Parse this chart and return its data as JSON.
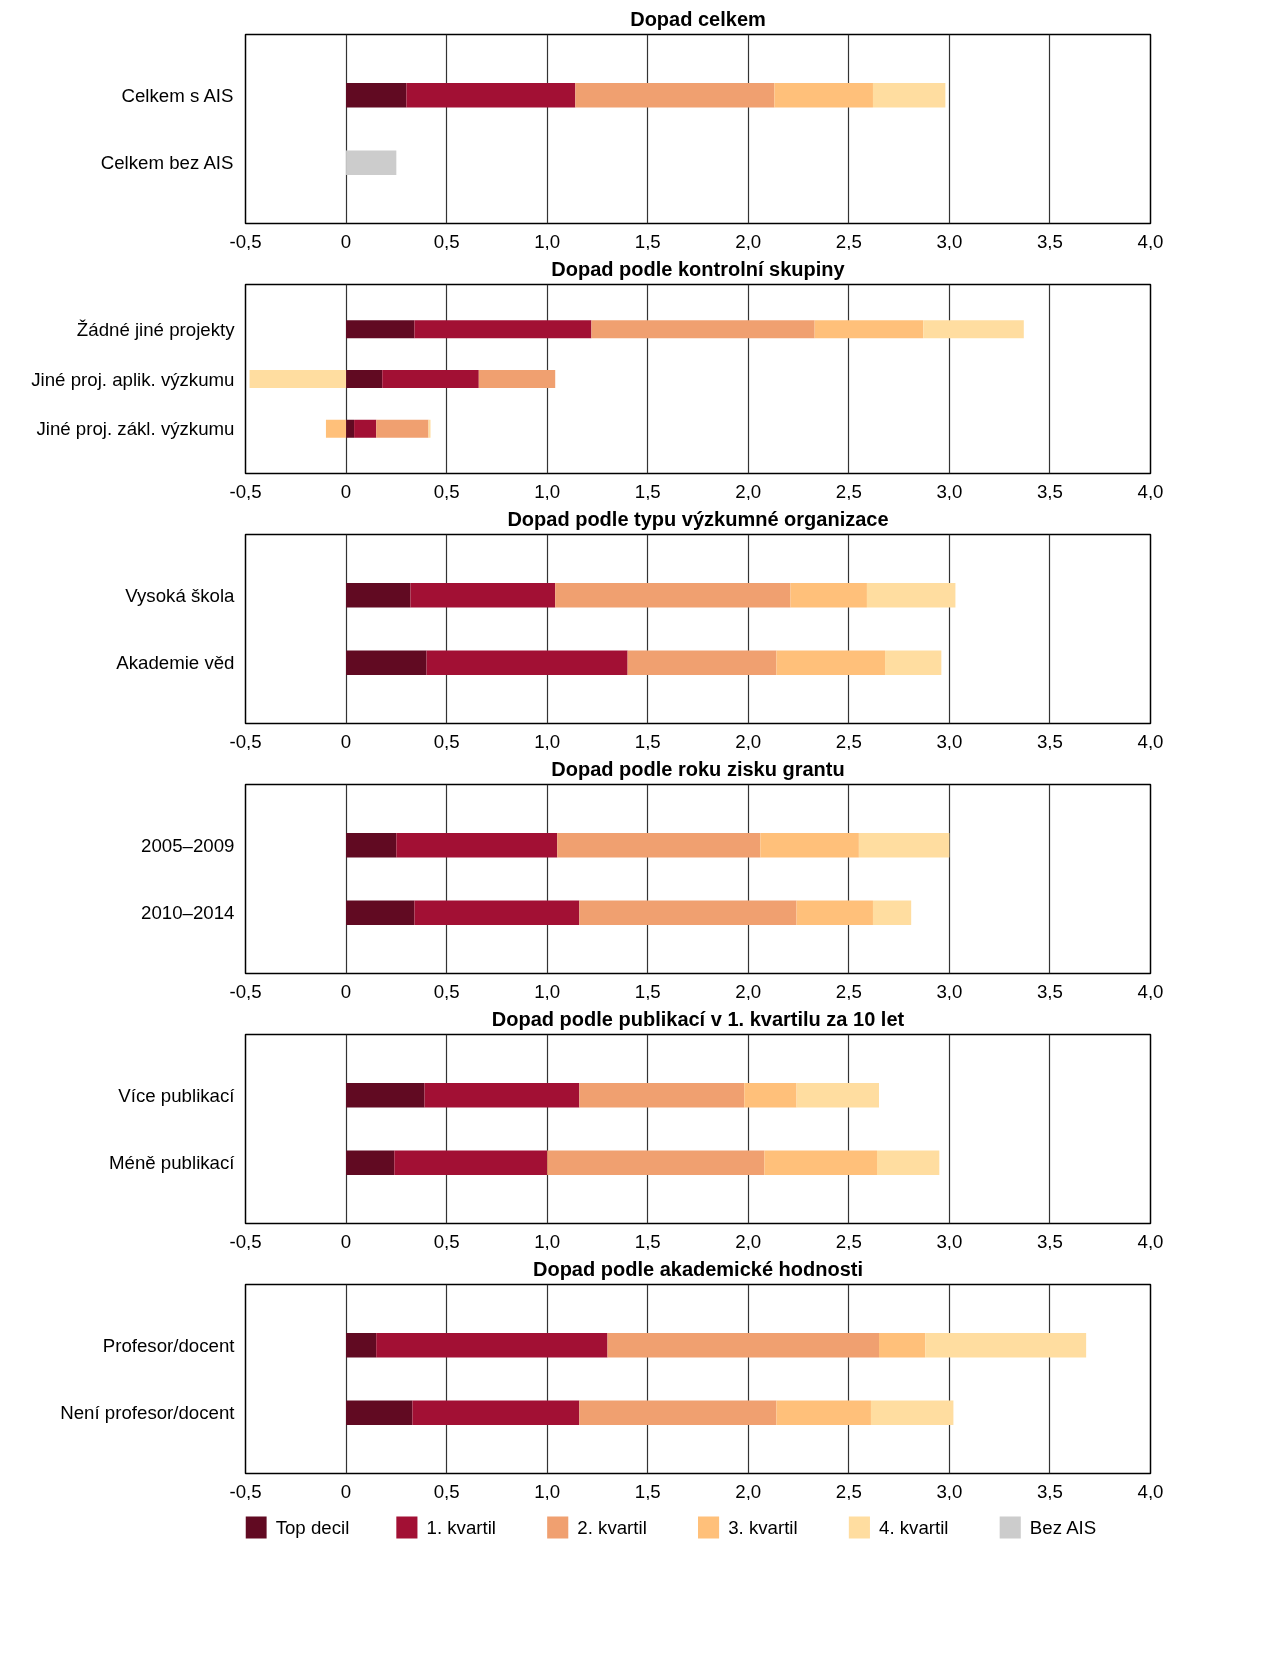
{
  "chart_data": [
    {
      "type": "bar",
      "orientation": "horizontal",
      "stacked": true,
      "legend": "bottom",
      "title": "Dopad celkem",
      "categories": [
        "Celkem s AIS",
        "Celkem bez AIS"
      ],
      "xlim": [
        -0.5,
        4
      ],
      "xticks": [
        {
          "value": -0.5,
          "label": "-0,5"
        },
        0,
        {
          "value": 0.5,
          "label": "0,5"
        },
        {
          "value": 1,
          "label": "1,0"
        },
        {
          "value": 1.5,
          "label": "1,5"
        },
        {
          "value": 2,
          "label": "2,0"
        },
        {
          "value": 2.5,
          "label": "2,5"
        },
        {
          "value": 3,
          "label": "3,0"
        },
        {
          "value": 3.5,
          "label": "3,5"
        },
        {
          "value": 4,
          "label": "4,0"
        }
      ],
      "grid": "x",
      "series": [
        {
          "name": "Top decil",
          "color": "#610a22",
          "values": [
            0.3,
            null
          ]
        },
        {
          "name": "1. kvartil",
          "color": "#a21034",
          "values": [
            0.84,
            null
          ]
        },
        {
          "name": "2. kvartil",
          "color": "#f0a070",
          "values": [
            0.99,
            null
          ]
        },
        {
          "name": "3. kvartil",
          "color": "#ffc07a",
          "values": [
            0.49,
            null
          ]
        },
        {
          "name": "4. kvartil",
          "color": "#ffdda0",
          "values": [
            0.36,
            null
          ]
        },
        {
          "name": "Bez AIS",
          "color": "#cccccc",
          "values": [
            null,
            0.25
          ]
        }
      ]
    },
    {
      "type": "bar",
      "orientation": "horizontal",
      "stacked": true,
      "title": "Dopad podle kontrolní skupiny",
      "legend": "bottom",
      "categories": [
        "Žádné jiné projekty",
        "Jiné proj. aplik. výzkumu",
        "Jiné proj. zákl. výzkumu"
      ],
      "xlim": [
        -0.5,
        4
      ],
      "xticks": [
        {
          "value": -0.5,
          "label": "-0,5"
        },
        0,
        {
          "value": 0.5,
          "label": "0,5"
        },
        {
          "value": 1,
          "label": "1,0"
        },
        {
          "value": 1.5,
          "label": "1,5"
        },
        {
          "value": 2,
          "label": "2,0"
        },
        {
          "value": 2.5,
          "label": "2,5"
        },
        {
          "value": 3,
          "label": "3,0"
        },
        {
          "value": 3.5,
          "label": "3,5"
        },
        {
          "value": 4,
          "label": "4,0"
        }
      ],
      "grid": "x",
      "series": [
        {
          "name": "Top decil",
          "color": "#610a22",
          "values": [
            0.34,
            0.18,
            0.04
          ]
        },
        {
          "name": "1. kvartil",
          "color": "#a21034",
          "values": [
            0.88,
            0.48,
            0.11
          ]
        },
        {
          "name": "2. kvartil",
          "color": "#f0a070",
          "values": [
            1.11,
            0.38,
            0.26
          ]
        },
        {
          "name": "3. kvartil",
          "color": "#ffc07a",
          "values": [
            0.54,
            null,
            -0.1
          ]
        },
        {
          "name": "4. kvartil",
          "color": "#ffdda0",
          "values": [
            0.5,
            -0.48,
            0.01
          ]
        }
      ]
    },
    {
      "type": "bar",
      "orientation": "horizontal",
      "stacked": true,
      "title": "Dopad podle typu výzkumné organizace",
      "legend": "bottom",
      "categories": [
        "Vysoká škola",
        "Akademie věd"
      ],
      "xlim": [
        -0.5,
        4
      ],
      "xticks": [
        {
          "value": -0.5,
          "label": "-0,5"
        },
        0,
        {
          "value": 0.5,
          "label": "0,5"
        },
        {
          "value": 1,
          "label": "1,0"
        },
        {
          "value": 1.5,
          "label": "1,5"
        },
        {
          "value": 2,
          "label": "2,0"
        },
        {
          "value": 2.5,
          "label": "2,5"
        },
        {
          "value": 3,
          "label": "3,0"
        },
        {
          "value": 3.5,
          "label": "3,5"
        },
        {
          "value": 4,
          "label": "4,0"
        }
      ],
      "grid": "x",
      "series": [
        {
          "name": "Top decil",
          "color": "#610a22",
          "values": [
            0.32,
            0.4
          ]
        },
        {
          "name": "1. kvartil",
          "color": "#a21034",
          "values": [
            0.72,
            1.0
          ]
        },
        {
          "name": "2. kvartil",
          "color": "#f0a070",
          "values": [
            1.17,
            0.74
          ]
        },
        {
          "name": "3. kvartil",
          "color": "#ffc07a",
          "values": [
            0.38,
            0.54
          ]
        },
        {
          "name": "4. kvartil",
          "color": "#ffdda0",
          "values": [
            0.44,
            0.28
          ]
        }
      ]
    },
    {
      "type": "bar",
      "orientation": "horizontal",
      "stacked": true,
      "title": "Dopad podle roku zisku grantu",
      "legend": "bottom",
      "categories": [
        "2005–2009",
        "2010–2014"
      ],
      "xlim": [
        -0.5,
        4
      ],
      "xticks": [
        {
          "value": -0.5,
          "label": "-0,5"
        },
        0,
        {
          "value": 0.5,
          "label": "0,5"
        },
        {
          "value": 1,
          "label": "1,0"
        },
        {
          "value": 1.5,
          "label": "1,5"
        },
        {
          "value": 2,
          "label": "2,0"
        },
        {
          "value": 2.5,
          "label": "2,5"
        },
        {
          "value": 3,
          "label": "3,0"
        },
        {
          "value": 3.5,
          "label": "3,5"
        },
        {
          "value": 4,
          "label": "4,0"
        }
      ],
      "grid": "x",
      "series": [
        {
          "name": "Top decil",
          "color": "#610a22",
          "values": [
            0.25,
            0.34
          ]
        },
        {
          "name": "1. kvartil",
          "color": "#a21034",
          "values": [
            0.8,
            0.82
          ]
        },
        {
          "name": "2. kvartil",
          "color": "#f0a070",
          "values": [
            1.01,
            1.08
          ]
        },
        {
          "name": "3. kvartil",
          "color": "#ffc07a",
          "values": [
            0.49,
            0.38
          ]
        },
        {
          "name": "4. kvartil",
          "color": "#ffdda0",
          "values": [
            0.45,
            0.19
          ]
        }
      ]
    },
    {
      "type": "bar",
      "orientation": "horizontal",
      "stacked": true,
      "title": "Dopad podle publikací v 1. kvartilu za 10 let",
      "legend": "bottom",
      "categories": [
        "Více publikací",
        "Méně publikací"
      ],
      "xlim": [
        -0.5,
        4
      ],
      "xticks": [
        {
          "value": -0.5,
          "label": "-0,5"
        },
        0,
        {
          "value": 0.5,
          "label": "0,5"
        },
        {
          "value": 1,
          "label": "1,0"
        },
        {
          "value": 1.5,
          "label": "1,5"
        },
        {
          "value": 2,
          "label": "2,0"
        },
        {
          "value": 2.5,
          "label": "2,5"
        },
        {
          "value": 3,
          "label": "3,0"
        },
        {
          "value": 3.5,
          "label": "3,5"
        },
        {
          "value": 4,
          "label": "4,0"
        }
      ],
      "grid": "x",
      "series": [
        {
          "name": "Top decil",
          "color": "#610a22",
          "values": [
            0.39,
            0.24
          ]
        },
        {
          "name": "1. kvartil",
          "color": "#a21034",
          "values": [
            0.77,
            0.76
          ]
        },
        {
          "name": "2. kvartil",
          "color": "#f0a070",
          "values": [
            0.82,
            1.08
          ]
        },
        {
          "name": "3. kvartil",
          "color": "#ffc07a",
          "values": [
            0.26,
            0.56
          ]
        },
        {
          "name": "4. kvartil",
          "color": "#ffdda0",
          "values": [
            0.41,
            0.31
          ]
        }
      ]
    },
    {
      "type": "bar",
      "orientation": "horizontal",
      "stacked": true,
      "title": "Dopad podle akademické hodnosti",
      "categories": [
        "Profesor/docent",
        "Není profesor/docent"
      ],
      "xlim": [
        -0.5,
        4
      ],
      "xticks": [
        {
          "value": -0.5,
          "label": "-0,5"
        },
        0,
        {
          "value": 0.5,
          "label": "0,5"
        },
        {
          "value": 1,
          "label": "1,0"
        },
        {
          "value": 1.5,
          "label": "1,5"
        },
        {
          "value": 2,
          "label": "2,0"
        },
        {
          "value": 2.5,
          "label": "2,5"
        },
        {
          "value": 3,
          "label": "3,0"
        },
        {
          "value": 3.5,
          "label": "3,5"
        },
        {
          "value": 4,
          "label": "4,0"
        }
      ],
      "grid": "x",
      "legend": "bottom",
      "series": [
        {
          "name": "Top decil",
          "color": "#610a22",
          "values": [
            0.15,
            0.33
          ]
        },
        {
          "name": "1. kvartil",
          "color": "#a21034",
          "values": [
            1.15,
            0.83
          ]
        },
        {
          "name": "2. kvartil",
          "color": "#f0a070",
          "values": [
            1.35,
            0.98
          ]
        },
        {
          "name": "3. kvartil",
          "color": "#ffc07a",
          "values": [
            0.23,
            0.47
          ]
        },
        {
          "name": "4. kvartil",
          "color": "#ffdda0",
          "values": [
            0.8,
            0.41
          ]
        }
      ]
    }
  ]
}
